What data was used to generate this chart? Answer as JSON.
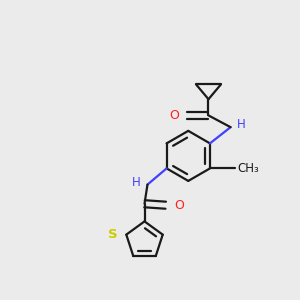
{
  "background_color": "#ebebeb",
  "bond_color": "#1a1a1a",
  "nitrogen_color": "#4040ff",
  "oxygen_color": "#ff2020",
  "sulfur_color": "#cccc00",
  "line_width": 1.6,
  "font_size": 8.5,
  "figsize": [
    3.0,
    3.0
  ],
  "dpi": 100,
  "xlim": [
    0,
    10
  ],
  "ylim": [
    0,
    10
  ]
}
